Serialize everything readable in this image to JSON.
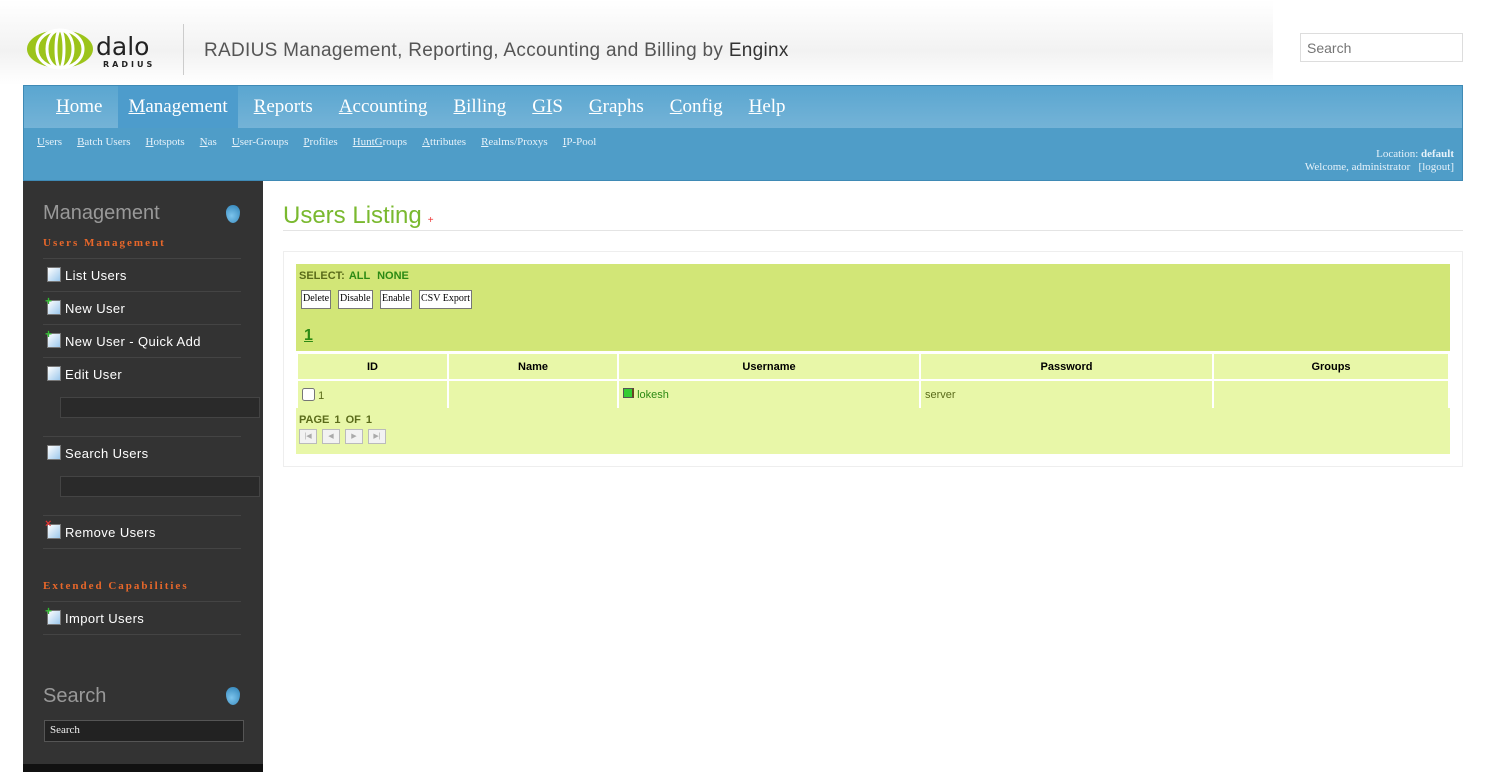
{
  "header": {
    "logo_text": "dalo RADIUS",
    "tagline": "RADIUS Management, Reporting, Accounting and Billing by",
    "tagline_brand": "Enginx",
    "search_placeholder": "Search"
  },
  "nav": {
    "main": [
      {
        "key": "H",
        "rest": "ome"
      },
      {
        "key": "M",
        "rest": "anagement"
      },
      {
        "key": "R",
        "rest": "eports"
      },
      {
        "key": "A",
        "rest": "ccounting"
      },
      {
        "key": "B",
        "rest": "illing"
      },
      {
        "key": "GI",
        "rest": "S"
      },
      {
        "key": "G",
        "rest": "raphs"
      },
      {
        "key": "C",
        "rest": "onfig"
      },
      {
        "key": "H",
        "rest": "elp"
      }
    ],
    "active": "Management",
    "sub": [
      {
        "key": "U",
        "rest": "sers"
      },
      {
        "key": "B",
        "rest": "atch Users"
      },
      {
        "key": "H",
        "rest": "otspots"
      },
      {
        "key": "N",
        "rest": "as"
      },
      {
        "key": "U",
        "rest": "ser-Groups"
      },
      {
        "key": "P",
        "rest": "rofiles"
      },
      {
        "key": "HuntG",
        "rest": "roups"
      },
      {
        "key": "A",
        "rest": "ttributes"
      },
      {
        "key": "R",
        "rest": "ealms/Proxys"
      },
      {
        "key": "I",
        "rest": "P-Pool"
      }
    ],
    "location_label": "Location:",
    "location": "default",
    "welcome": "Welcome, administrator",
    "logout": "[logout]"
  },
  "sidebar": {
    "title": "Management",
    "section1": "Users Management",
    "items": [
      "List Users",
      "New User",
      "New User - Quick Add",
      "Edit User",
      "Search Users",
      "Remove Users"
    ],
    "section2": "Extended Capabilities",
    "items2": [
      "Import Users"
    ],
    "search_title": "Search",
    "search_value": "Search"
  },
  "main": {
    "title": "Users Listing",
    "title_mark": "+",
    "select_label": "SELECT:",
    "select_all": "ALL",
    "select_none": "NONE",
    "buttons": [
      "Delete",
      "Disable",
      "Enable",
      "CSV Export"
    ],
    "page_link": "1",
    "columns": [
      "ID",
      "Name",
      "Username",
      "Password",
      "Groups"
    ],
    "rows": [
      {
        "id": "1",
        "name": "",
        "username": "lokesh",
        "password": "server",
        "groups": ""
      }
    ],
    "page_info": "PAGE 1 OF 1"
  },
  "colors": {
    "nav": "#4f9dc8",
    "accent": "#7ab92f",
    "table_bg": "#e8f7a8",
    "toolbar_bg": "#d2e677",
    "sidebar": "#333333",
    "section": "#e8672a"
  }
}
